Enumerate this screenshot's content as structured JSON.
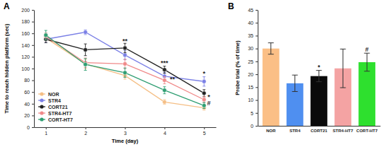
{
  "chart_data": [
    {
      "type": "line",
      "title": "A",
      "x_label": "Time (day)",
      "y_label": "Time to reach hidden platform (sec)",
      "x": [
        1,
        2,
        3,
        4,
        5
      ],
      "xlim": [
        0.7,
        5.3
      ],
      "xticks": [
        1,
        2,
        3,
        4,
        5
      ],
      "ylim": [
        0,
        200
      ],
      "yticks": [
        0,
        20,
        40,
        60,
        80,
        100,
        120,
        140,
        160,
        180,
        200
      ],
      "legend": "lower left",
      "marker": "circle",
      "series": [
        {
          "name": "NOR",
          "color": "#f5bf86",
          "values": [
            152,
            108,
            88,
            43,
            33
          ],
          "errors": [
            5,
            8,
            6,
            4,
            4
          ]
        },
        {
          "name": "STR4",
          "color": "#7b80e6",
          "values": [
            150,
            162,
            123,
            87,
            78
          ],
          "errors": [
            6,
            4,
            8,
            6,
            8
          ]
        },
        {
          "name": "CORT21",
          "color": "#222222",
          "values": [
            150,
            132,
            135,
            98,
            58
          ],
          "errors": [
            6,
            10,
            8,
            6,
            6
          ]
        },
        {
          "name": "STR4-HT7",
          "color": "#f08a8a",
          "values": [
            155,
            110,
            108,
            80,
            47
          ],
          "errors": [
            6,
            8,
            8,
            6,
            5
          ]
        },
        {
          "name": "CORT-HT7",
          "color": "#2f9e72",
          "values": [
            157,
            107,
            93,
            63,
            37
          ],
          "errors": [
            8,
            10,
            8,
            6,
            5
          ]
        }
      ],
      "annotations": [
        {
          "text": "**",
          "x": 3,
          "y": 143
        },
        {
          "text": "***",
          "x": 4,
          "y": 106
        },
        {
          "text": "**",
          "x": 4.2,
          "y": 78
        },
        {
          "text": "*",
          "x": 5,
          "y": 88
        },
        {
          "text": "*",
          "x": 5.12,
          "y": 48
        },
        {
          "text": "#",
          "x": 5.12,
          "y": 37
        }
      ]
    },
    {
      "type": "bar",
      "title": "B",
      "y_label": "Probe trial (% of time)",
      "categories": [
        "NOR",
        "STR4",
        "CORT21",
        "STR4-HT7",
        "CORT-HT7"
      ],
      "values": [
        30,
        16.5,
        19.3,
        22.3,
        24.7
      ],
      "errors": [
        2.2,
        3.2,
        2.2,
        7.5,
        3.5
      ],
      "colors": [
        "#fbbf86",
        "#4f8ff0",
        "#0a0a0a",
        "#f4a3a3",
        "#2ee02e"
      ],
      "ylim": [
        0,
        45
      ],
      "yticks": [
        0,
        5,
        10,
        15,
        20,
        25,
        30,
        35,
        40,
        45
      ],
      "annotations": [
        null,
        null,
        "*",
        null,
        "#"
      ]
    }
  ]
}
